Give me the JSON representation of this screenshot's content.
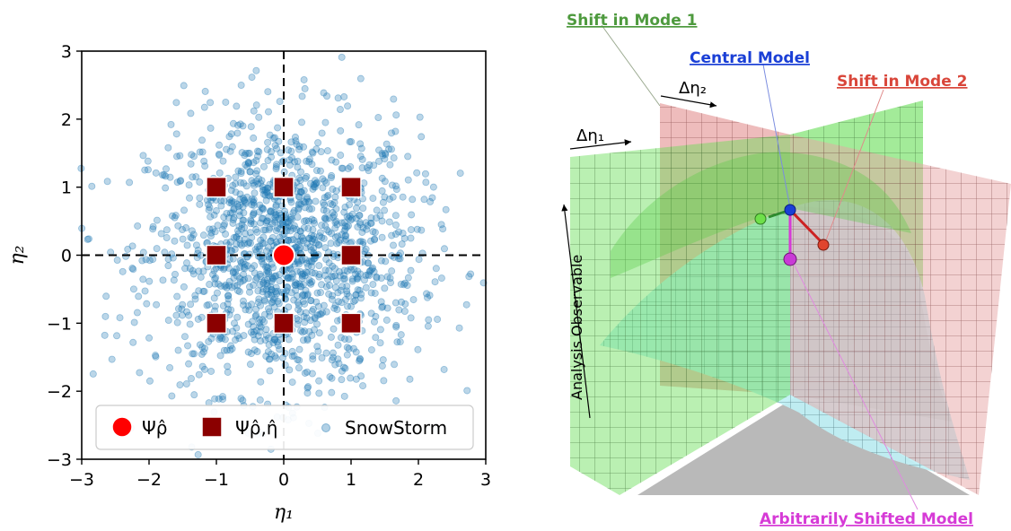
{
  "chart_data": [
    {
      "type": "scatter",
      "title": "",
      "xlabel": "η₁",
      "ylabel": "η₂",
      "xlim": [
        -3,
        3
      ],
      "ylim": [
        -3,
        3
      ],
      "xticks": [
        -3,
        -2,
        -1,
        0,
        1,
        2,
        3
      ],
      "yticks": [
        -3,
        -2,
        -1,
        0,
        1,
        2,
        3
      ],
      "xtick_labels": [
        "−3",
        "−2",
        "−1",
        "0",
        "1",
        "2",
        "3"
      ],
      "ytick_labels": [
        "−3",
        "−2",
        "−1",
        "0",
        "1",
        "2",
        "3"
      ],
      "grid": false,
      "crosshair_lines": {
        "x": 0,
        "y": 0,
        "style": "dashed"
      },
      "legend_position": "bottom",
      "series": [
        {
          "name": "Ψρ̂",
          "marker": "circle",
          "color": "#ff0000",
          "points": [
            [
              0,
              0
            ]
          ]
        },
        {
          "name": "Ψρ̂,η̂",
          "marker": "square",
          "color": "#8b0000",
          "points": [
            [
              -1,
              1
            ],
            [
              0,
              1
            ],
            [
              1,
              1
            ],
            [
              -1,
              0
            ],
            [
              1,
              0
            ],
            [
              -1,
              -1
            ],
            [
              0,
              -1
            ],
            [
              1,
              -1
            ]
          ]
        },
        {
          "name": "SnowStorm",
          "marker": "circle",
          "color": "#1f77b4",
          "alpha": 0.3,
          "distribution": "standard normal in η₁ and η₂",
          "count": 1500
        }
      ]
    }
  ],
  "diagram": {
    "labels": {
      "shift_mode_1": "Shift in Mode 1",
      "central_model": "Central Model",
      "shift_mode_2": "Shift in Mode 2",
      "arbitrarily_shifted": "Arbitrarily Shifted Model",
      "delta_eta_1": "Δη₁",
      "delta_eta_2": "Δη₂",
      "analysis_observable": "Analysis Observable"
    },
    "colors": {
      "mode1": "#4e9a3e",
      "central": "#1a3fd6",
      "mode2": "#d9463a",
      "shifted": "#d63ad6",
      "green_plane": "#66dd55",
      "red_plane": "#e8a5a5",
      "surface": "#bff0f5",
      "floor": "#b9b9b9"
    }
  }
}
